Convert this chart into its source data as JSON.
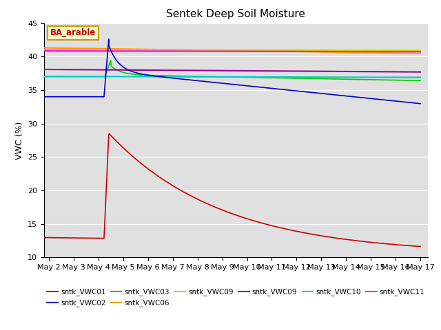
{
  "title": "Sentek Deep Soil Moisture",
  "ylabel": "VWC (%)",
  "ylim": [
    10,
    45
  ],
  "annotation": "BA_arable",
  "background_color": "#e0e0e0",
  "series_colors": {
    "vwc01": "#cc0000",
    "vwc02": "#0000cc",
    "vwc03": "#00cc00",
    "vwc06": "#ff9900",
    "vwc09y": "#cccc00",
    "vwc09p": "#990099",
    "vwc10": "#00cccc",
    "vwc11": "#ff00ff"
  },
  "legend_entries": [
    {
      "label": "sntk_VWC01",
      "color": "#cc0000"
    },
    {
      "label": "sntk_VWC02",
      "color": "#0000cc"
    },
    {
      "label": "sntk_VWC03",
      "color": "#00cc00"
    },
    {
      "label": "sntk_VWC06",
      "color": "#ff9900"
    },
    {
      "label": "sntk_VWC09",
      "color": "#cccc00"
    },
    {
      "label": "sntk_VWC09",
      "color": "#990099"
    },
    {
      "label": "sntk_VWC10",
      "color": "#00cccc"
    },
    {
      "label": "sntk_VWC11",
      "color": "#ff00ff"
    }
  ],
  "tick_labels": [
    "May 2",
    "May 3",
    "May 4",
    "May 5",
    "May 6",
    "May 7",
    "May 8",
    "May 9",
    "May 10",
    "May 11",
    "May 12",
    "May 13",
    "May 14",
    "May 15",
    "May 16",
    "May 17"
  ]
}
